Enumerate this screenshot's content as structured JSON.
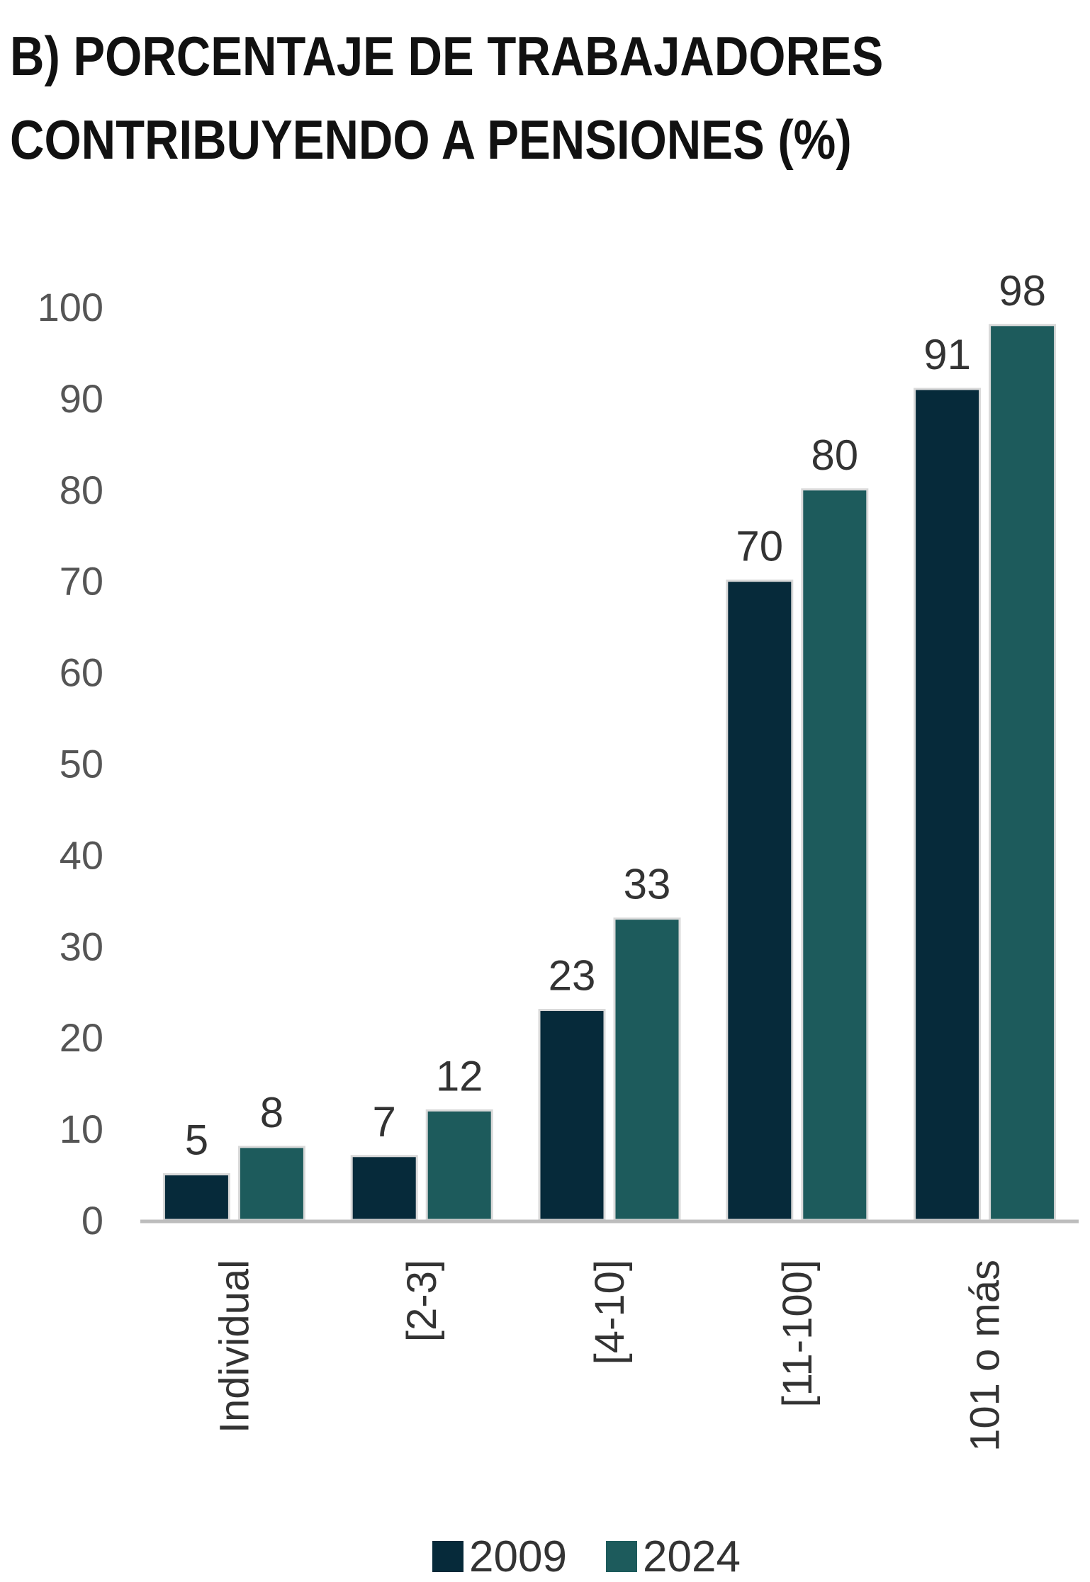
{
  "chart_data": {
    "type": "bar",
    "title_lines": [
      "B) PORCENTAJE DE TRABAJADORES",
      "CONTRIBUYENDO A PENSIONES (%)"
    ],
    "categories": [
      "Individual",
      "[2-3]",
      "[4-10]",
      "[11-100]",
      "101 o más"
    ],
    "series": [
      {
        "name": "2009",
        "values": [
          5,
          7,
          23,
          70,
          91
        ],
        "color": "#062a3a"
      },
      {
        "name": "2024",
        "values": [
          8,
          12,
          33,
          80,
          98
        ],
        "color": "#1d5b5c"
      }
    ],
    "yticks": [
      0,
      10,
      20,
      30,
      40,
      50,
      60,
      70,
      80,
      90,
      100
    ],
    "ylim": [
      0,
      100
    ],
    "grid": false,
    "legend_position": "bottom-center",
    "axis_color": "#bdbdbd",
    "label_color": "#333333",
    "tick_color": "#555555"
  }
}
